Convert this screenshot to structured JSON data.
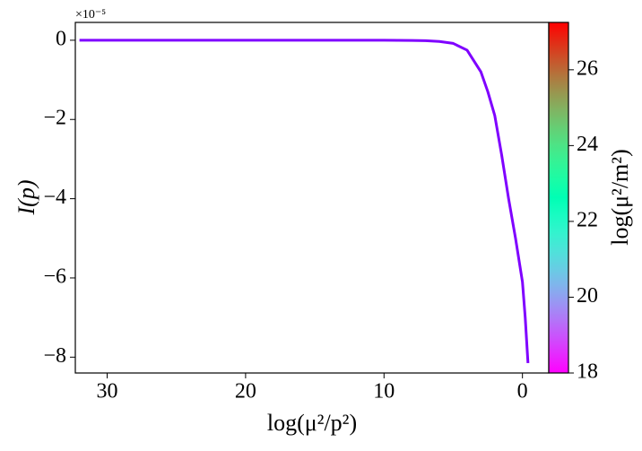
{
  "chart_data": {
    "type": "line",
    "x_label": "log(μ²/p²)",
    "y_label": "I(p)",
    "y_offset_label": "×10⁻⁵",
    "xlim": [
      32.3,
      -1.9
    ],
    "xticks": [
      30,
      20,
      10,
      0
    ],
    "ylim": [
      -8.4,
      0.45
    ],
    "yticks": [
      {
        "value": 0,
        "label": "0"
      },
      {
        "value": -2,
        "label": "−2"
      },
      {
        "value": -4,
        "label": "−4"
      },
      {
        "value": -6,
        "label": "−6"
      },
      {
        "value": -8,
        "label": "−8"
      }
    ],
    "x": [
      32,
      25,
      20,
      15,
      10,
      8,
      7,
      6,
      5,
      4,
      3,
      2.5,
      2,
      1.5,
      1,
      0.5,
      0,
      -0.2,
      -0.4
    ],
    "series": [
      {
        "color": "#7f00ff",
        "values": [
          0,
          0,
          0,
          0,
          0,
          -0.005,
          -0.01,
          -0.03,
          -0.08,
          -0.25,
          -0.8,
          -1.3,
          -1.9,
          -2.9,
          -4.0,
          -5.0,
          -6.1,
          -7.0,
          -8.15
        ]
      }
    ],
    "colorbar": {
      "label": "log(μ²/m²)",
      "colormap": "rainbow",
      "lim": [
        18,
        27.25
      ],
      "ticks": [
        18,
        20,
        22,
        24,
        26
      ]
    }
  }
}
